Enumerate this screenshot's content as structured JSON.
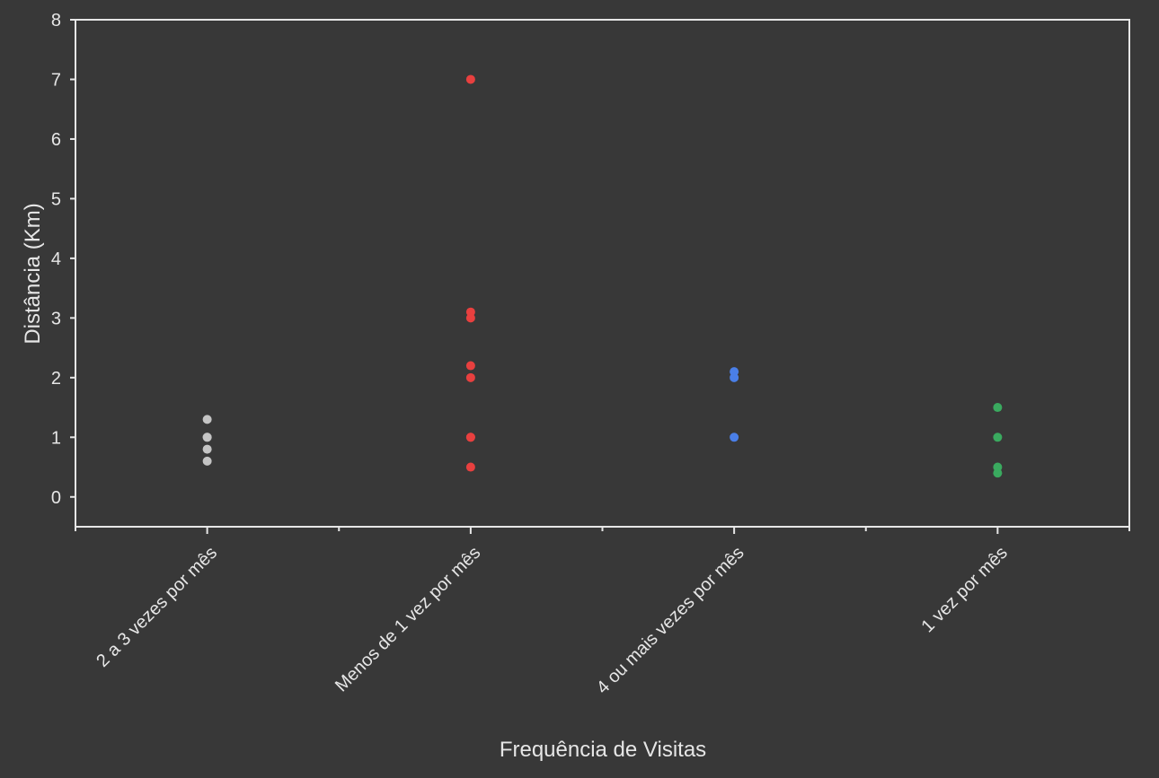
{
  "chart_data": {
    "type": "strip",
    "xlabel": "Frequência de Visitas",
    "ylabel": "Distância (Km)",
    "categories": [
      "2 a 3 vezes por mês",
      "Menos de 1 vez por mês",
      "4 ou mais vezes por mês",
      "1 vez por mês"
    ],
    "colors": [
      "#c4c4c4",
      "#e8403f",
      "#4a7fe8",
      "#3aaa5f"
    ],
    "values": [
      [
        1.3,
        1.0,
        1.0,
        0.8,
        0.6
      ],
      [
        7.0,
        3.1,
        3.0,
        2.2,
        2.0,
        1.0,
        1.0,
        0.5
      ],
      [
        2.1,
        2.0,
        1.0
      ],
      [
        1.5,
        1.0,
        0.5,
        0.4
      ]
    ],
    "ylim": [
      -0.5,
      8
    ],
    "yticks": [
      0,
      1,
      2,
      3,
      4,
      5,
      6,
      7,
      8
    ]
  }
}
